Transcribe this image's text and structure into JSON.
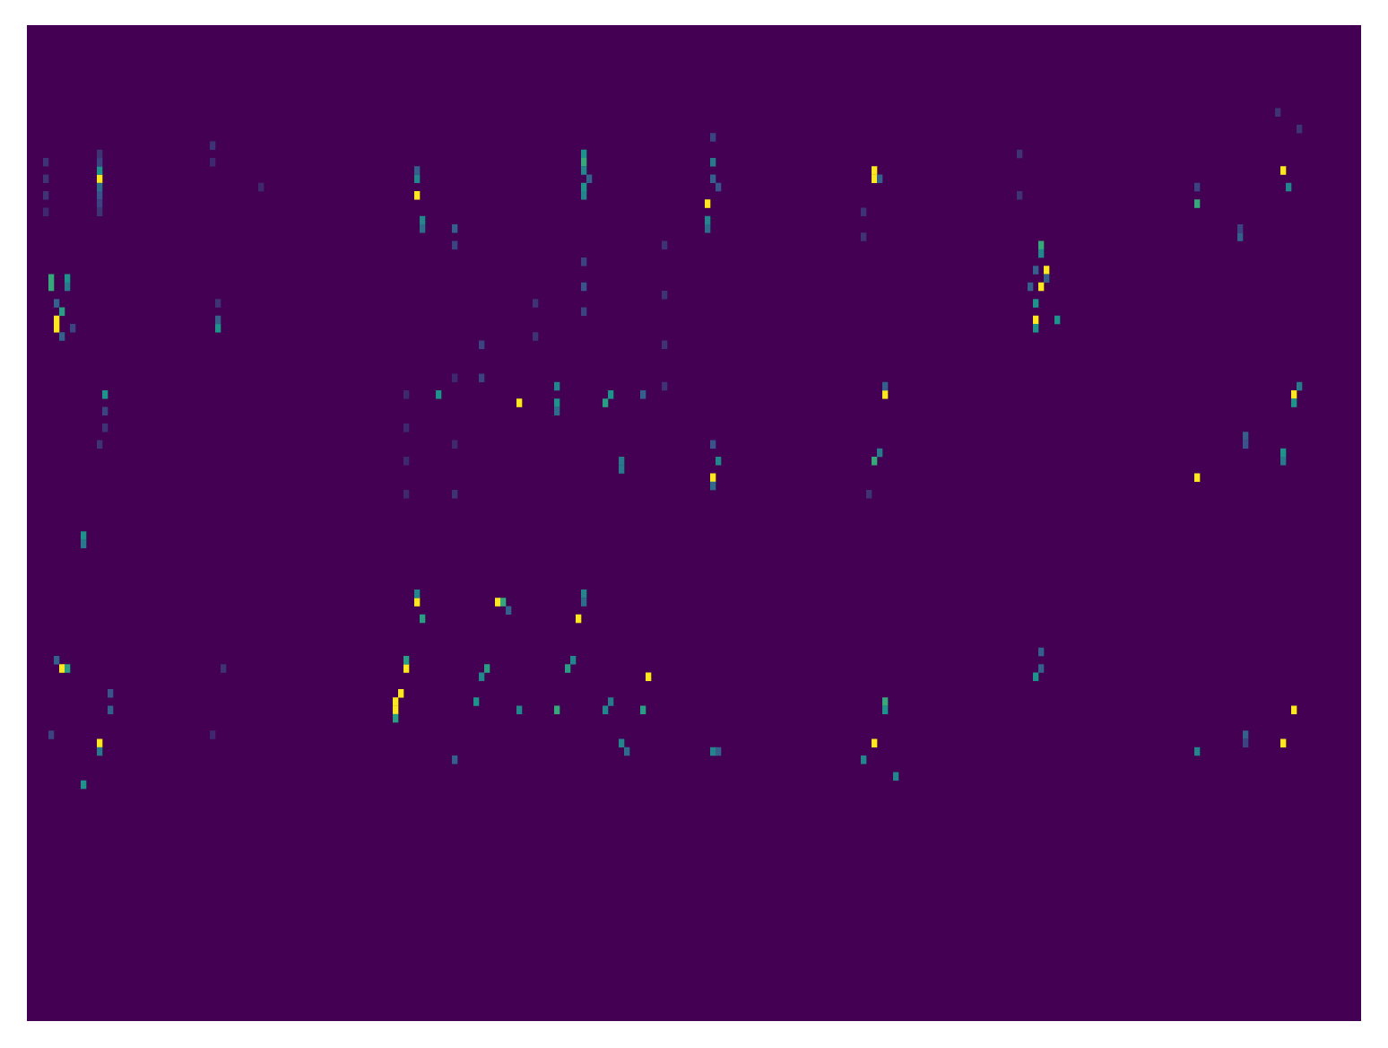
{
  "chart_data": {
    "type": "heatmap",
    "tick_labels": false,
    "n_cols": 248,
    "n_rows": 120,
    "zlim": [
      0,
      1
    ],
    "cells": [
      [
        13,
        18,
        1
      ],
      [
        13,
        17,
        0.5
      ],
      [
        13,
        19,
        0.35
      ],
      [
        13,
        20,
        0.25
      ],
      [
        13,
        16,
        0.2
      ],
      [
        13,
        15,
        0.15
      ],
      [
        13,
        21,
        0.2
      ],
      [
        13,
        22,
        0.15
      ],
      [
        4,
        31,
        0.6
      ],
      [
        4,
        30,
        0.6
      ],
      [
        5,
        35,
        1
      ],
      [
        5,
        36,
        1
      ],
      [
        6,
        34,
        0.55
      ],
      [
        7,
        30,
        0.5
      ],
      [
        7,
        31,
        0.4
      ],
      [
        5,
        33,
        0.3
      ],
      [
        6,
        37,
        0.3
      ],
      [
        8,
        36,
        0.2
      ],
      [
        3,
        16,
        0.15
      ],
      [
        3,
        18,
        0.15
      ],
      [
        3,
        20,
        0.15
      ],
      [
        3,
        22,
        0.12
      ],
      [
        14,
        44,
        0.5
      ],
      [
        14,
        46,
        0.2
      ],
      [
        14,
        48,
        0.15
      ],
      [
        13,
        50,
        0.15
      ],
      [
        10,
        61,
        0.5
      ],
      [
        10,
        62,
        0.4
      ],
      [
        35,
        36,
        0.5
      ],
      [
        35,
        35,
        0.3
      ],
      [
        35,
        33,
        0.15
      ],
      [
        34,
        14,
        0.15
      ],
      [
        34,
        16,
        0.12
      ],
      [
        43,
        19,
        0.12
      ],
      [
        72,
        20,
        1
      ],
      [
        72,
        18,
        0.45
      ],
      [
        73,
        23,
        0.45
      ],
      [
        73,
        24,
        0.35
      ],
      [
        72,
        17,
        0.3
      ],
      [
        103,
        15,
        0.5
      ],
      [
        103,
        16,
        0.6
      ],
      [
        103,
        17,
        0.45
      ],
      [
        103,
        19,
        0.5
      ],
      [
        103,
        20,
        0.45
      ],
      [
        104,
        18,
        0.3
      ],
      [
        79,
        24,
        0.3
      ],
      [
        79,
        26,
        0.2
      ],
      [
        126,
        21,
        1
      ],
      [
        127,
        16,
        0.4
      ],
      [
        127,
        18,
        0.3
      ],
      [
        126,
        23,
        0.45
      ],
      [
        126,
        24,
        0.35
      ],
      [
        127,
        13,
        0.2
      ],
      [
        128,
        19,
        0.25
      ],
      [
        157,
        18,
        1
      ],
      [
        157,
        17,
        1
      ],
      [
        158,
        18,
        0.3
      ],
      [
        155,
        22,
        0.15
      ],
      [
        155,
        25,
        0.15
      ],
      [
        188,
        26,
        0.6
      ],
      [
        188,
        27,
        0.45
      ],
      [
        189,
        29,
        1
      ],
      [
        189,
        30,
        0.3
      ],
      [
        188,
        31,
        1
      ],
      [
        187,
        33,
        0.5
      ],
      [
        187,
        35,
        1
      ],
      [
        187,
        36,
        0.5
      ],
      [
        191,
        35,
        0.5
      ],
      [
        187,
        29,
        0.3
      ],
      [
        186,
        31,
        0.3
      ],
      [
        184,
        15,
        0.15
      ],
      [
        184,
        20,
        0.15
      ],
      [
        233,
        17,
        1
      ],
      [
        234,
        19,
        0.45
      ],
      [
        217,
        21,
        0.6
      ],
      [
        217,
        19,
        0.2
      ],
      [
        225,
        25,
        0.3
      ],
      [
        225,
        24,
        0.2
      ],
      [
        232,
        10,
        0.15
      ],
      [
        236,
        12,
        0.15
      ],
      [
        76,
        44,
        0.5
      ],
      [
        91,
        45,
        1
      ],
      [
        98,
        43,
        0.45
      ],
      [
        98,
        45,
        0.5
      ],
      [
        98,
        46,
        0.35
      ],
      [
        107,
        45,
        0.55
      ],
      [
        108,
        44,
        0.5
      ],
      [
        114,
        44,
        0.3
      ],
      [
        110,
        52,
        0.4
      ],
      [
        110,
        53,
        0.4
      ],
      [
        127,
        54,
        1
      ],
      [
        128,
        52,
        0.45
      ],
      [
        127,
        50,
        0.25
      ],
      [
        127,
        55,
        0.35
      ],
      [
        159,
        44,
        1
      ],
      [
        159,
        43,
        0.3
      ],
      [
        157,
        52,
        0.6
      ],
      [
        158,
        51,
        0.4
      ],
      [
        156,
        56,
        0.15
      ],
      [
        235,
        44,
        1
      ],
      [
        235,
        45,
        0.5
      ],
      [
        233,
        51,
        0.5
      ],
      [
        233,
        52,
        0.4
      ],
      [
        217,
        54,
        1
      ],
      [
        226,
        49,
        0.3
      ],
      [
        226,
        50,
        0.25
      ],
      [
        236,
        43,
        0.4
      ],
      [
        72,
        69,
        1
      ],
      [
        72,
        68,
        0.45
      ],
      [
        73,
        71,
        0.55
      ],
      [
        87,
        69,
        1
      ],
      [
        88,
        69,
        0.6
      ],
      [
        89,
        70,
        0.3
      ],
      [
        103,
        68,
        0.45
      ],
      [
        103,
        69,
        0.35
      ],
      [
        102,
        71,
        1
      ],
      [
        70,
        77,
        1
      ],
      [
        70,
        76,
        0.55
      ],
      [
        69,
        80,
        1
      ],
      [
        68,
        81,
        1
      ],
      [
        68,
        82,
        1
      ],
      [
        68,
        83,
        0.55
      ],
      [
        85,
        77,
        0.55
      ],
      [
        84,
        78,
        0.45
      ],
      [
        83,
        81,
        0.5
      ],
      [
        100,
        77,
        0.55
      ],
      [
        101,
        76,
        0.45
      ],
      [
        115,
        78,
        1
      ],
      [
        91,
        82,
        0.45
      ],
      [
        98,
        82,
        0.6
      ],
      [
        107,
        82,
        0.45
      ],
      [
        108,
        81,
        0.4
      ],
      [
        114,
        82,
        0.55
      ],
      [
        110,
        86,
        0.45
      ],
      [
        111,
        87,
        0.35
      ],
      [
        79,
        88,
        0.3
      ],
      [
        6,
        77,
        1
      ],
      [
        7,
        77,
        0.55
      ],
      [
        5,
        76,
        0.3
      ],
      [
        13,
        86,
        1
      ],
      [
        13,
        87,
        0.4
      ],
      [
        10,
        91,
        0.5
      ],
      [
        15,
        82,
        0.3
      ],
      [
        15,
        80,
        0.25
      ],
      [
        4,
        85,
        0.2
      ],
      [
        36,
        77,
        0.15
      ],
      [
        34,
        85,
        0.12
      ],
      [
        127,
        87,
        0.45
      ],
      [
        128,
        87,
        0.3
      ],
      [
        159,
        81,
        0.6
      ],
      [
        159,
        82,
        0.5
      ],
      [
        157,
        86,
        1
      ],
      [
        155,
        88,
        0.45
      ],
      [
        161,
        90,
        0.45
      ],
      [
        188,
        75,
        0.3
      ],
      [
        187,
        78,
        0.5
      ],
      [
        188,
        77,
        0.3
      ],
      [
        235,
        82,
        1
      ],
      [
        233,
        86,
        1
      ],
      [
        217,
        87,
        0.45
      ],
      [
        226,
        85,
        0.3
      ],
      [
        226,
        86,
        0.2
      ],
      [
        70,
        44,
        0.12
      ],
      [
        70,
        48,
        0.12
      ],
      [
        70,
        52,
        0.12
      ],
      [
        70,
        56,
        0.12
      ],
      [
        79,
        42,
        0.12
      ],
      [
        79,
        50,
        0.12
      ],
      [
        79,
        56,
        0.15
      ],
      [
        103,
        28,
        0.2
      ],
      [
        103,
        31,
        0.25
      ],
      [
        103,
        34,
        0.2
      ],
      [
        118,
        26,
        0.15
      ],
      [
        118,
        32,
        0.15
      ],
      [
        118,
        38,
        0.15
      ],
      [
        118,
        43,
        0.15
      ],
      [
        94,
        33,
        0.15
      ],
      [
        94,
        37,
        0.15
      ],
      [
        84,
        38,
        0.2
      ],
      [
        84,
        42,
        0.2
      ]
    ]
  }
}
